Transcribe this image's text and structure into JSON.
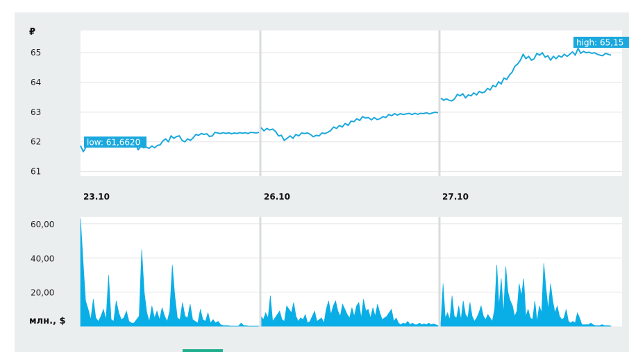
{
  "chart_data": [
    {
      "type": "line",
      "unit_label": "₽",
      "y_ticks": [
        "61",
        "62",
        "63",
        "64",
        "65"
      ],
      "ylim": [
        60.85,
        65.75
      ],
      "grid": true,
      "sessions": [
        "23.10",
        "26.10",
        "27.10"
      ],
      "low_label": "low: 61,6620",
      "high_label": "high: 65,15",
      "accent_color": "#1ba8dd",
      "series": [
        {
          "session": "23.10",
          "values": [
            61.87,
            61.67,
            61.82,
            61.91,
            61.95,
            61.86,
            61.99,
            61.9,
            61.97,
            61.84,
            61.91,
            61.96,
            61.98,
            61.87,
            61.95,
            61.99,
            61.97,
            61.88,
            61.96,
            61.92,
            61.95,
            61.73,
            61.85,
            61.8,
            61.82,
            61.78,
            61.86,
            61.8,
            61.88,
            61.9,
            62.03,
            62.1,
            62.0,
            62.2,
            62.12,
            62.18,
            62.2,
            62.05,
            62.0,
            62.1,
            62.05,
            62.13,
            62.25,
            62.22,
            62.28,
            62.25,
            62.27,
            62.18,
            62.2,
            62.32,
            62.3,
            62.28,
            62.31,
            62.28,
            62.31,
            62.27,
            62.3,
            62.28,
            62.31,
            62.29,
            62.31,
            62.28,
            62.32,
            62.31,
            62.3,
            62.32
          ]
        },
        {
          "session": "26.10",
          "values": [
            62.48,
            62.37,
            62.45,
            62.4,
            62.43,
            62.35,
            62.2,
            62.22,
            62.05,
            62.12,
            62.2,
            62.12,
            62.25,
            62.2,
            62.3,
            62.28,
            62.3,
            62.25,
            62.17,
            62.22,
            62.2,
            62.3,
            62.28,
            62.32,
            62.38,
            62.5,
            62.45,
            62.55,
            62.5,
            62.62,
            62.55,
            62.7,
            62.68,
            62.78,
            62.72,
            62.85,
            62.8,
            62.82,
            62.74,
            62.82,
            62.75,
            62.78,
            62.85,
            62.82,
            62.92,
            62.88,
            62.95,
            62.9,
            62.95,
            62.92,
            62.94,
            62.96,
            62.92,
            62.96,
            62.93,
            62.96,
            62.95,
            62.98,
            62.94,
            62.97,
            63.0,
            62.98
          ]
        },
        {
          "session": "27.10",
          "values": [
            63.47,
            63.4,
            63.45,
            63.4,
            63.38,
            63.45,
            63.6,
            63.55,
            63.62,
            63.48,
            63.58,
            63.55,
            63.65,
            63.58,
            63.7,
            63.65,
            63.68,
            63.8,
            63.75,
            63.9,
            63.85,
            64.02,
            63.95,
            64.15,
            64.1,
            64.25,
            64.35,
            64.55,
            64.62,
            64.75,
            64.95,
            64.8,
            64.88,
            64.75,
            64.8,
            64.98,
            64.92,
            65.0,
            64.85,
            64.9,
            64.75,
            64.88,
            64.8,
            64.9,
            64.85,
            64.95,
            64.88,
            64.95,
            65.03,
            64.92,
            65.15,
            64.98,
            65.05,
            65.0,
            65.02,
            64.98,
            65.0,
            64.95,
            64.92,
            64.9,
            64.98,
            64.95,
            64.92
          ]
        }
      ]
    },
    {
      "type": "area",
      "unit_label": "млн., $",
      "y_ticks": [
        "20,00",
        "40,00",
        "60,00"
      ],
      "ylim": [
        0,
        64
      ],
      "grid": true,
      "sessions": [
        "23.10",
        "26.10",
        "27.10"
      ],
      "accent_color": "#0aaee6",
      "series": [
        {
          "session": "23.10",
          "values": [
            63,
            38,
            15,
            10,
            4,
            16,
            5,
            3,
            6,
            10,
            4,
            30,
            4,
            3,
            15,
            8,
            4,
            5,
            9,
            3,
            2,
            2,
            4,
            6,
            45,
            20,
            8,
            3,
            12,
            5,
            9,
            4,
            11,
            6,
            3,
            9,
            36,
            18,
            5,
            4,
            14,
            6,
            5,
            13,
            4,
            3,
            2,
            10,
            4,
            3,
            8,
            2,
            4,
            2,
            3,
            1,
            0.5,
            0.5,
            0.5,
            0.3,
            0.3,
            0.3,
            0.3,
            2,
            0.5,
            0.5,
            0.3,
            0.3,
            0.3,
            0.3,
            0.2
          ]
        },
        {
          "session": "26.10",
          "values": [
            6,
            4,
            8,
            5,
            18,
            3,
            5,
            7,
            9,
            4,
            3,
            12,
            10,
            8,
            14,
            6,
            3,
            5,
            4,
            7,
            2,
            3,
            6,
            9,
            3,
            4,
            5,
            2,
            10,
            15,
            7,
            12,
            15,
            9,
            6,
            13,
            10,
            7,
            5,
            11,
            6,
            12,
            14,
            5,
            16,
            9,
            10,
            5,
            11,
            6,
            13,
            8,
            4,
            5,
            6,
            8,
            10,
            3,
            5,
            2,
            1,
            2,
            1.5,
            3,
            1,
            2,
            1,
            1,
            2,
            1,
            1.5,
            1,
            2,
            1,
            1.5,
            1,
            0.5
          ]
        },
        {
          "session": "27.10",
          "values": [
            2,
            25,
            5,
            8,
            4,
            18,
            6,
            5,
            12,
            4,
            15,
            7,
            5,
            14,
            6,
            3,
            5,
            8,
            12,
            6,
            4,
            7,
            5,
            3,
            10,
            36,
            12,
            28,
            8,
            35,
            20,
            15,
            12,
            6,
            9,
            25,
            18,
            28,
            6,
            10,
            5,
            4,
            15,
            3,
            12,
            8,
            37,
            22,
            10,
            25,
            15,
            8,
            12,
            6,
            4,
            5,
            10,
            3,
            2,
            3,
            2,
            8,
            5,
            1,
            1,
            1,
            1,
            2,
            1,
            0.5,
            0.5,
            0.5,
            1,
            0.5,
            0.5,
            0.5,
            0.3
          ]
        }
      ]
    }
  ]
}
